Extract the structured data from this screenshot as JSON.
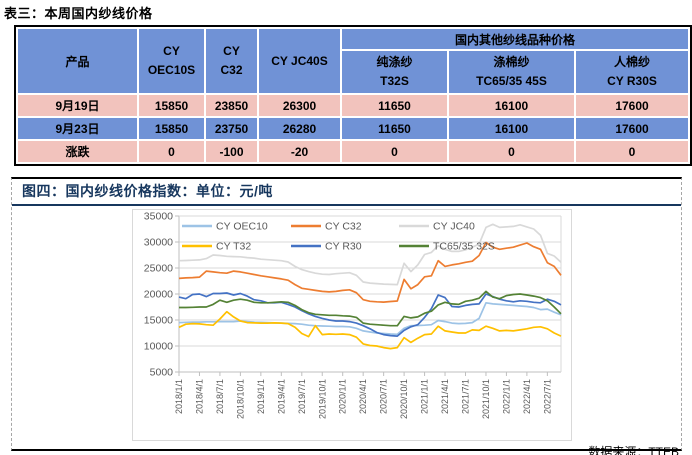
{
  "table_section": {
    "title": "表三：本周国内纱线价格",
    "table": {
      "product_col_header": "产品",
      "simple_headers": [
        "CY\nOEC10S",
        "CY\nC32",
        "CY JC40S"
      ],
      "group_header": "国内其他纱线品种价格",
      "group_sub_headers": [
        "纯涤纱\nT32S",
        "涤棉纱\nTC65/35 45S",
        "人棉纱\nCY R30S"
      ],
      "rows": [
        {
          "label": "9月19日",
          "values": [
            "15850",
            "23850",
            "26300",
            "11650",
            "16100",
            "17600"
          ],
          "bg": "pink",
          "green_indices": []
        },
        {
          "label": "9月23日",
          "values": [
            "15850",
            "23750",
            "26280",
            "11650",
            "16100",
            "17600"
          ],
          "bg": "blue",
          "green_indices": []
        },
        {
          "label": "涨跌",
          "values": [
            "0",
            "-100",
            "-20",
            "0",
            "0",
            "0"
          ],
          "bg": "pink",
          "green_indices": [
            1,
            2
          ]
        }
      ],
      "colors": {
        "header_blue": "#7092D6",
        "row_pink": "#F2C3BD",
        "change_green": "#92C353"
      }
    }
  },
  "chart_section": {
    "title": "图四：国内纱线价格指数：单位：元/吨",
    "source": "数据来源：TTEB",
    "title_color": "#17375E"
  },
  "chart_data": {
    "type": "line",
    "title": "国内纱线价格指数",
    "unit": "元/吨",
    "ylim": [
      5000,
      35000
    ],
    "ytick_step": 5000,
    "ytick_labels": [
      "5000",
      "10000",
      "15000",
      "20000",
      "25000",
      "30000",
      "35000"
    ],
    "grid": true,
    "legend_position": "top-inside",
    "x_months_start": "2018/1",
    "x_months_count": 57,
    "x_tick_every": 3,
    "x_tick_labels": [
      "2018/1/1",
      "2018/4/1",
      "2018/7/1",
      "2018/10/1",
      "2019/1/1",
      "2019/4/1",
      "2019/7/1",
      "2019/10/1",
      "2020/1/1",
      "2020/4/1",
      "2020/7/1",
      "2020/10/1",
      "2021/1/1",
      "2021/4/1",
      "2021/7/1",
      "2021/10/1",
      "2022/1/1",
      "2022/4/1",
      "2022/7/1"
    ],
    "axis_text_color": "#595959",
    "grid_color": "#D9D9D9",
    "axis_line_color": "#BFBFBF",
    "series": [
      {
        "name": "CY OEC10",
        "color": "#9DC3E6",
        "values": [
          14500,
          14550,
          14600,
          14600,
          14650,
          14650,
          14700,
          14700,
          14700,
          14800,
          14700,
          14600,
          14550,
          14500,
          14450,
          14400,
          14350,
          14300,
          14200,
          14000,
          13900,
          13850,
          13800,
          13750,
          13750,
          13700,
          13400,
          12900,
          12700,
          12500,
          12400,
          12300,
          12250,
          13400,
          13900,
          13950,
          14000,
          14100,
          14900,
          14700,
          14400,
          14300,
          14350,
          14500,
          15300,
          18300,
          18100,
          18000,
          17900,
          17800,
          17700,
          17600,
          17400,
          17000,
          17100,
          16500,
          16000
        ]
      },
      {
        "name": "CY C32",
        "color": "#ED7D31",
        "values": [
          23000,
          23100,
          23150,
          23250,
          24400,
          24250,
          24100,
          24000,
          24400,
          24250,
          24000,
          23750,
          23500,
          23300,
          23100,
          22900,
          22650,
          21800,
          21100,
          20900,
          20700,
          20500,
          20400,
          20500,
          20700,
          20800,
          20250,
          18900,
          18600,
          18500,
          18450,
          18550,
          18650,
          22800,
          21000,
          21800,
          23300,
          23500,
          26400,
          25300,
          25600,
          25800,
          26100,
          26300,
          27400,
          29900,
          29000,
          28600,
          28800,
          29000,
          29400,
          29800,
          29100,
          28600,
          26000,
          25300,
          23600
        ]
      },
      {
        "name": "CY JC40",
        "color": "#D9D9D9",
        "values": [
          26400,
          26450,
          26500,
          26550,
          26800,
          27500,
          27400,
          27250,
          27200,
          27150,
          27000,
          26900,
          26700,
          26600,
          26500,
          26400,
          26150,
          25300,
          24700,
          24300,
          24000,
          23800,
          23750,
          23900,
          24000,
          24100,
          23600,
          22300,
          22100,
          22000,
          21900,
          21850,
          21800,
          25900,
          24300,
          25600,
          27600,
          28000,
          29300,
          28600,
          28200,
          28200,
          28500,
          29000,
          29600,
          32800,
          33400,
          32800,
          32900,
          33000,
          33300,
          32900,
          32500,
          31300,
          27800,
          27300,
          26100
        ]
      },
      {
        "name": "CY T32",
        "color": "#FFC000",
        "values": [
          13600,
          14200,
          14300,
          14250,
          14100,
          14000,
          15200,
          16600,
          15600,
          14800,
          14500,
          14450,
          14400,
          14400,
          14450,
          14400,
          14300,
          13600,
          12400,
          11800,
          13900,
          12200,
          12300,
          12250,
          12300,
          12200,
          11700,
          10400,
          10100,
          10000,
          9700,
          9500,
          9700,
          11600,
          10700,
          11500,
          12200,
          12300,
          13800,
          12900,
          12700,
          12500,
          12500,
          13100,
          13000,
          13800,
          13400,
          12900,
          13000,
          12900,
          13100,
          13300,
          13600,
          13700,
          13300,
          12500,
          11900
        ]
      },
      {
        "name": "CY R30",
        "color": "#4472C4",
        "values": [
          19400,
          19100,
          19900,
          20000,
          19500,
          20100,
          20100,
          20200,
          19800,
          20100,
          19600,
          18900,
          18700,
          18300,
          18300,
          18400,
          18000,
          17500,
          16800,
          16200,
          15700,
          15300,
          15000,
          14800,
          14800,
          14700,
          14400,
          13900,
          13300,
          12600,
          12200,
          12000,
          11900,
          13000,
          13700,
          14100,
          15500,
          17200,
          19800,
          19300,
          17600,
          17500,
          17800,
          18000,
          18100,
          20000,
          19500,
          19000,
          18700,
          18500,
          18700,
          18600,
          18400,
          18300,
          19000,
          18600,
          17900
        ]
      },
      {
        "name": "TC65/35 32S",
        "color": "#548235",
        "values": [
          17400,
          17400,
          17450,
          17500,
          17500,
          18000,
          18800,
          18400,
          18800,
          19000,
          18800,
          18400,
          18300,
          18300,
          18400,
          18500,
          18400,
          17800,
          17000,
          16400,
          16100,
          16000,
          15900,
          15900,
          15800,
          15750,
          15500,
          14400,
          14200,
          14100,
          14000,
          13900,
          13900,
          15700,
          15400,
          15600,
          16300,
          16700,
          17900,
          18400,
          18100,
          18000,
          18600,
          18800,
          19200,
          20500,
          19400,
          19100,
          19700,
          19900,
          20000,
          19800,
          19600,
          19300,
          18700,
          17500,
          16200
        ]
      }
    ]
  }
}
